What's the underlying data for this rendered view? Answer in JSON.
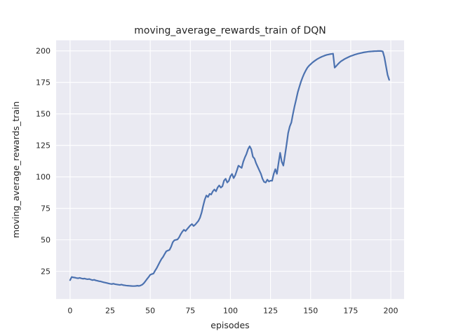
{
  "figure": {
    "background": "#ffffff"
  },
  "chart_data": {
    "type": "line",
    "title": "moving_average_rewards_train of DQN",
    "xlabel": "episodes",
    "ylabel": "moving_average_rewards_train",
    "legend": "none",
    "grid": true,
    "style": "seaborn-darkgrid",
    "line_color": "#4c72b0",
    "plot_bg": "#eaeaf2",
    "grid_color": "#ffffff",
    "text_color": "#262626",
    "xticks": [
      0,
      25,
      50,
      75,
      100,
      125,
      150,
      175,
      200
    ],
    "yticks": [
      25,
      50,
      75,
      100,
      125,
      150,
      175,
      200
    ],
    "xlim": [
      -8.7,
      208.3
    ],
    "ylim": [
      3.0,
      208.4
    ],
    "x_start": 0,
    "x_step": 1,
    "values": [
      18.0,
      20.5,
      20.2,
      20.0,
      19.7,
      19.5,
      19.8,
      19.4,
      19.1,
      19.3,
      18.9,
      18.7,
      18.9,
      18.4,
      18.0,
      18.3,
      17.8,
      17.5,
      17.2,
      17.0,
      16.6,
      16.3,
      16.0,
      15.7,
      15.4,
      15.1,
      14.9,
      15.2,
      14.8,
      14.6,
      14.4,
      14.2,
      14.5,
      14.1,
      13.9,
      13.7,
      13.6,
      13.5,
      13.4,
      13.3,
      13.3,
      13.4,
      13.6,
      13.4,
      13.8,
      14.4,
      15.6,
      17.2,
      18.9,
      20.5,
      22.3,
      22.8,
      23.2,
      25.5,
      27.5,
      30.0,
      32.5,
      34.8,
      36.5,
      38.8,
      40.9,
      41.5,
      42.0,
      44.5,
      48.0,
      49.6,
      50.0,
      50.3,
      52.0,
      54.5,
      56.5,
      58.0,
      57.0,
      58.5,
      60.0,
      61.5,
      62.5,
      61.0,
      62.0,
      63.5,
      65.0,
      67.5,
      71.5,
      77.0,
      82.0,
      85.2,
      84.0,
      86.5,
      86.0,
      88.5,
      90.0,
      88.5,
      91.5,
      93.2,
      91.5,
      92.5,
      97.0,
      98.5,
      95.5,
      96.8,
      100.5,
      102.3,
      99.0,
      101.3,
      105.0,
      108.9,
      108.0,
      107.1,
      112.0,
      115.4,
      118.2,
      122.0,
      124.3,
      121.9,
      116.0,
      114.5,
      110.8,
      108.0,
      105.2,
      102.4,
      98.5,
      96.0,
      95.5,
      97.8,
      96.3,
      97.0,
      96.9,
      102.4,
      106.1,
      102.4,
      111.0,
      119.1,
      112.0,
      108.9,
      117.0,
      125.6,
      134.8,
      140.0,
      143.2,
      150.0,
      156.1,
      161.5,
      167.2,
      171.5,
      175.6,
      179.0,
      182.0,
      184.5,
      186.7,
      188.2,
      189.4,
      190.6,
      191.6,
      192.5,
      193.4,
      194.1,
      194.8,
      195.4,
      195.9,
      196.4,
      196.8,
      197.1,
      197.4,
      197.6,
      197.8,
      186.7,
      188.0,
      189.4,
      190.7,
      191.8,
      192.6,
      193.4,
      194.1,
      194.7,
      195.3,
      195.9,
      196.3,
      196.8,
      197.2,
      197.6,
      197.9,
      198.2,
      198.5,
      198.8,
      199.0,
      199.2,
      199.4,
      199.5,
      199.6,
      199.7,
      199.8,
      199.8,
      199.9,
      199.9,
      199.9,
      199.5,
      195.0,
      188.0,
      181.0,
      177.0
    ]
  }
}
